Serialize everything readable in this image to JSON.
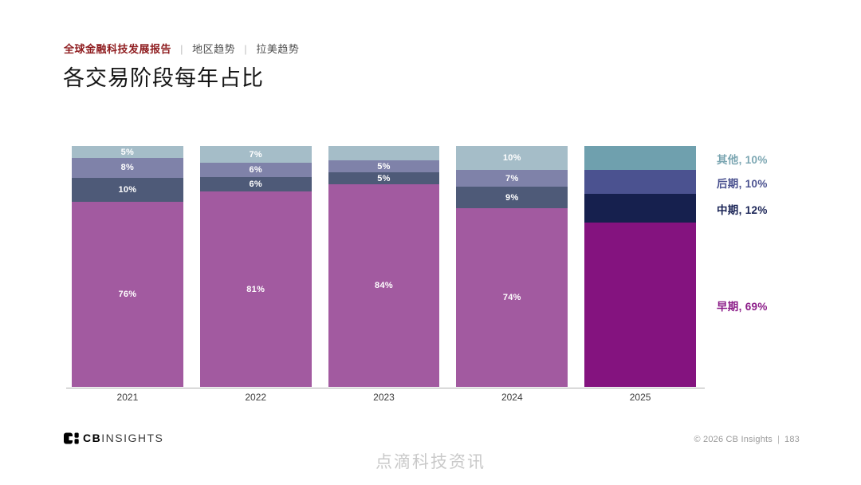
{
  "header": {
    "report_title": "全球金融科技发展报告",
    "separator": "|",
    "breadcrumbs": [
      "地区趋势",
      "拉美趋势"
    ]
  },
  "title": "各交易阶段每年占比",
  "chart_data": {
    "type": "bar",
    "stacked": true,
    "unit": "%",
    "title": "各交易阶段每年占比",
    "categories": [
      "2021",
      "2022",
      "2023",
      "2024",
      "2025"
    ],
    "highlight_category": "2025",
    "series": [
      {
        "name": "早期",
        "values": [
          76,
          81,
          84,
          74,
          69
        ],
        "labels": [
          "76%",
          "81%",
          "84%",
          "74%",
          null
        ],
        "color": "#a25aa0",
        "highlight_color": "#84137f"
      },
      {
        "name": "中期",
        "values": [
          10,
          6,
          5,
          9,
          12
        ],
        "labels": [
          "10%",
          "6%",
          "5%",
          "9%",
          null
        ],
        "color": "#4e5a78",
        "highlight_color": "#16204e"
      },
      {
        "name": "后期",
        "values": [
          8,
          6,
          5,
          7,
          10
        ],
        "labels": [
          "8%",
          "6%",
          "5%",
          "7%",
          null
        ],
        "color": "#7f82a9",
        "highlight_color": "#4b5290"
      },
      {
        "name": "其他",
        "values": [
          5,
          7,
          6,
          10,
          10
        ],
        "labels": [
          "5%",
          "7%",
          null,
          "10%",
          null
        ],
        "color": "#a5bdc8",
        "highlight_color": "#6fa0ae"
      }
    ],
    "legend_position": "right",
    "legend": [
      {
        "label": "其他, 10%",
        "color": "#7ba6b2"
      },
      {
        "label": "后期, 10%",
        "color": "#4b5290"
      },
      {
        "label": "中期, 12%",
        "color": "#1a2456"
      },
      {
        "label": "早期, 69%",
        "color": "#8c1d89"
      }
    ]
  },
  "footer": {
    "logo_cb": "CB",
    "logo_insights": "INSIGHTS",
    "copyright": "© 2026 CB Insights",
    "separator": "|",
    "page_number": "183"
  },
  "watermark": "点滴科技资讯"
}
